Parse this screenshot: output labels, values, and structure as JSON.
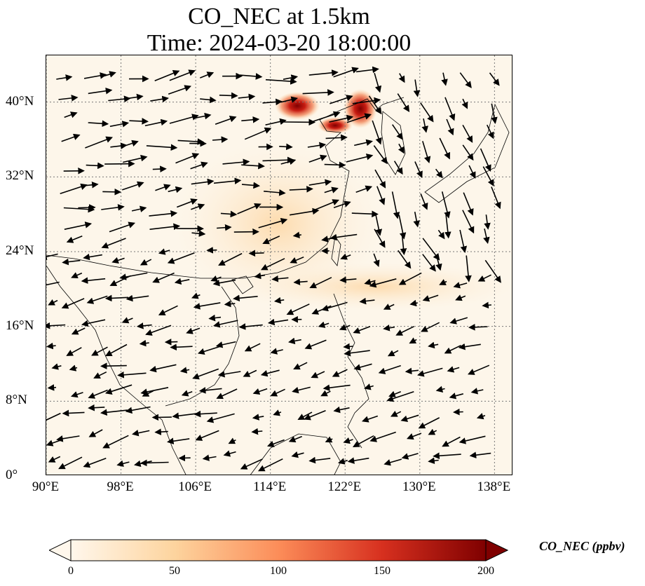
{
  "title": {
    "line1": "CO_NEC at 1.5km",
    "line2": "Time: 2024-03-20 18:00:00"
  },
  "map": {
    "lon_range": [
      90,
      140
    ],
    "lat_range": [
      0,
      45
    ],
    "gridlines": "dotted",
    "x_ticks": [
      "90°E",
      "98°E",
      "106°E",
      "114°E",
      "122°E",
      "130°E",
      "138°E"
    ],
    "y_ticks": [
      "0°",
      "8°N",
      "16°N",
      "24°N",
      "32°N",
      "40°N"
    ],
    "field": "CO_NEC",
    "overlay": "wind vectors (arrows)",
    "hotspots_note": "highest concentrations over North China Plain / Bohai region (~40°N, 116–125°E)"
  },
  "colorbar": {
    "label": "CO_NEC (ppbv)",
    "ticks": [
      "0",
      "50",
      "100",
      "150",
      "200"
    ],
    "range": [
      0,
      200
    ],
    "colormap": "OrRd",
    "extend": "both",
    "colors": [
      "#fff7ec",
      "#fdd49e",
      "#fc8d59",
      "#d7301f",
      "#7f0000"
    ]
  }
}
